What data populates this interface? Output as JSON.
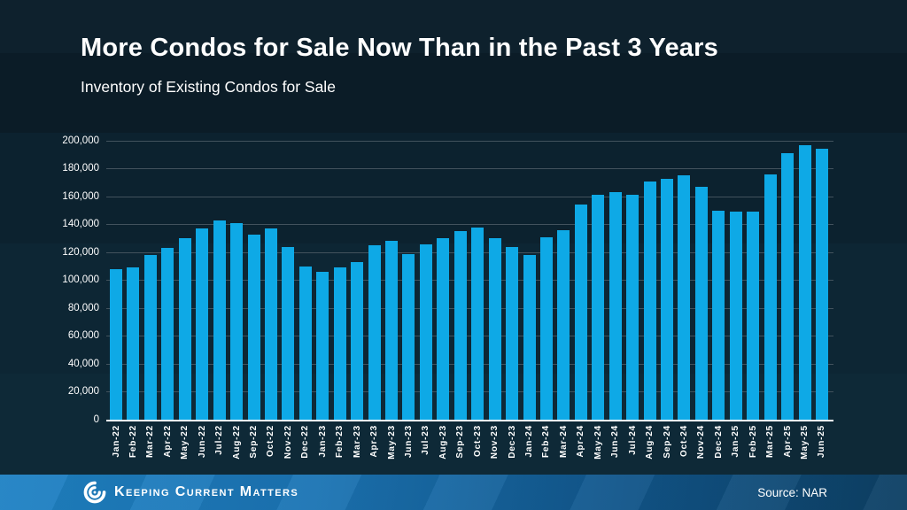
{
  "header": {
    "title": "More Condos for Sale Now Than in the Past 3 Years",
    "subtitle": "Inventory of Existing Condos for Sale"
  },
  "footer": {
    "brand": "Keeping Current Matters",
    "source": "Source: NAR",
    "logo_icon": "kcm-swirl-icon"
  },
  "colors": {
    "background": "#0c222f",
    "bar": "#0ea9e6",
    "gridline": "#42525d",
    "text": "#ffffff",
    "footer_left": "#1f82c4",
    "footer_right": "#0d3f63"
  },
  "chart_data": {
    "type": "bar",
    "title": "Inventory of Existing Condos for Sale",
    "xlabel": "",
    "ylabel": "",
    "grid": "horizontal",
    "legend": "none",
    "ylim": [
      0,
      200000
    ],
    "ytick_interval": 20000,
    "ytick_labels": [
      "0",
      "20,000",
      "40,000",
      "60,000",
      "80,000",
      "100,000",
      "120,000",
      "140,000",
      "160,000",
      "180,000",
      "200,000"
    ],
    "categories": [
      "Jan-22",
      "Feb-22",
      "Mar-22",
      "Apr-22",
      "May-22",
      "Jun-22",
      "Jul-22",
      "Aug-22",
      "Sep-22",
      "Oct-22",
      "Nov-22",
      "Dec-22",
      "Jan-23",
      "Feb-23",
      "Mar-23",
      "Apr-23",
      "May-23",
      "Jun-23",
      "Jul-23",
      "Aug-23",
      "Sep-23",
      "Oct-23",
      "Nov-23",
      "Dec-23",
      "Jan-24",
      "Feb-24",
      "Mar-24",
      "Apr-24",
      "May-24",
      "Jun-24",
      "Jul-24",
      "Aug-24",
      "Sep-24",
      "Oct-24",
      "Nov-24",
      "Dec-24",
      "Jan-25",
      "Feb-25",
      "Mar-25",
      "Apr-25",
      "May-25",
      "Jun-25"
    ],
    "values": [
      108000,
      109000,
      118000,
      123000,
      130000,
      137000,
      143000,
      141000,
      133000,
      137000,
      124000,
      110000,
      106000,
      109000,
      113000,
      125000,
      128000,
      119000,
      126000,
      130000,
      135000,
      138000,
      130000,
      124000,
      118000,
      131000,
      136000,
      154000,
      161000,
      163000,
      161000,
      171000,
      173000,
      175000,
      167000,
      150000,
      149000,
      149000,
      176000,
      191000,
      197000,
      194000
    ]
  }
}
